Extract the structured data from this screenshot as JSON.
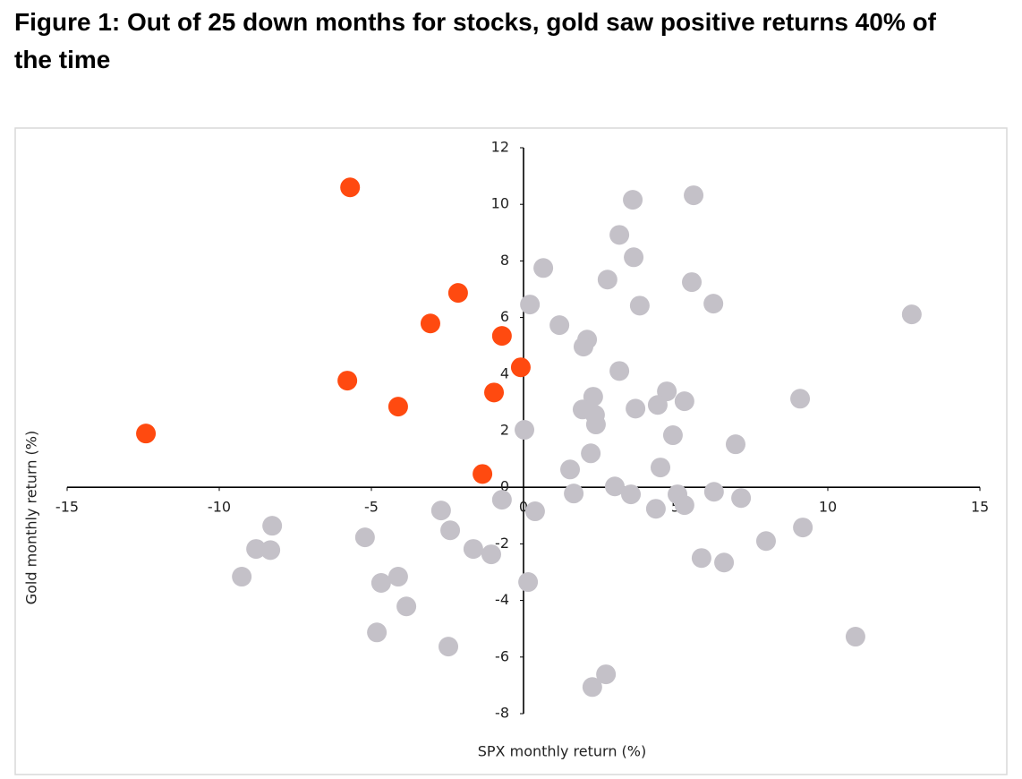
{
  "chart_data": {
    "type": "scatter",
    "title": "Figure 1: Out of 25 down months for stocks, gold saw positive returns 40% of the time",
    "x_label": "SPX monthly return (%)",
    "y_label": "Gold monthly return (%)",
    "xlim": [
      -15,
      15
    ],
    "xticks": [
      -15,
      -10,
      -5,
      0,
      5,
      10,
      15
    ],
    "ylim": [
      -8,
      12
    ],
    "yticks": [
      -8,
      -6,
      -4,
      -2,
      0,
      2,
      4,
      6,
      8,
      10,
      12
    ],
    "series": [
      {
        "color": "#c4c1c8",
        "x": [
          3.59,
          5.59,
          3.15,
          3.62,
          0.65,
          2.76,
          5.53,
          0.21,
          3.82,
          6.24,
          12.76,
          1.18,
          2.09,
          1.97,
          3.15,
          4.71,
          2.29,
          5.29,
          9.09,
          3.68,
          4.41,
          1.94,
          2.35,
          2.38,
          0.03,
          4.91,
          6.97,
          2.21,
          1.53,
          4.5,
          3.0,
          1.65,
          3.53,
          5.06,
          6.26,
          7.15,
          -0.71,
          0.38,
          -2.71,
          4.35,
          5.29,
          -8.26,
          -2.41,
          9.18,
          -5.21,
          7.97,
          -8.79,
          -8.32,
          -1.65,
          -1.06,
          5.85,
          6.59,
          -9.26,
          -4.12,
          0.15,
          -4.68,
          -3.85,
          -4.82,
          10.91,
          -2.47,
          2.71,
          2.26
        ],
        "y": [
          10.16,
          10.32,
          8.92,
          8.13,
          7.75,
          7.34,
          7.25,
          6.46,
          6.42,
          6.49,
          6.11,
          5.73,
          5.22,
          4.97,
          4.11,
          3.39,
          3.2,
          3.04,
          3.13,
          2.78,
          2.91,
          2.75,
          2.56,
          2.22,
          2.03,
          1.84,
          1.52,
          1.2,
          0.63,
          0.7,
          0.03,
          -0.22,
          -0.25,
          -0.25,
          -0.16,
          -0.38,
          -0.44,
          -0.85,
          -0.82,
          -0.76,
          -0.63,
          -1.36,
          -1.52,
          -1.42,
          -1.77,
          -1.9,
          -2.18,
          -2.22,
          -2.18,
          -2.37,
          -2.5,
          -2.66,
          -3.16,
          -3.16,
          -3.35,
          -3.38,
          -4.21,
          -5.13,
          -5.28,
          -5.63,
          -6.61,
          -7.06
        ]
      },
      {
        "color": "#ff4a10",
        "x": [
          -5.7,
          -2.15,
          -3.06,
          -0.71,
          -0.09,
          -5.79,
          -0.97,
          -4.12,
          -12.41,
          -1.35
        ],
        "y": [
          10.6,
          6.87,
          5.79,
          5.35,
          4.24,
          3.77,
          3.35,
          2.85,
          1.9,
          0.47
        ]
      }
    ]
  }
}
